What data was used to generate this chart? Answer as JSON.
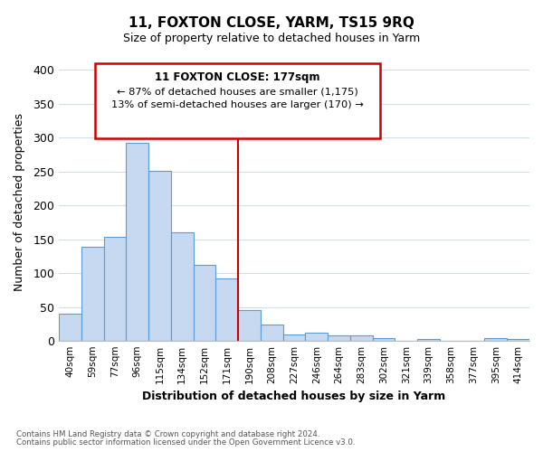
{
  "title": "11, FOXTON CLOSE, YARM, TS15 9RQ",
  "subtitle": "Size of property relative to detached houses in Yarm",
  "xlabel": "Distribution of detached houses by size in Yarm",
  "ylabel": "Number of detached properties",
  "categories": [
    "40sqm",
    "59sqm",
    "77sqm",
    "96sqm",
    "115sqm",
    "134sqm",
    "152sqm",
    "171sqm",
    "190sqm",
    "208sqm",
    "227sqm",
    "246sqm",
    "264sqm",
    "283sqm",
    "302sqm",
    "321sqm",
    "339sqm",
    "358sqm",
    "377sqm",
    "395sqm",
    "414sqm"
  ],
  "values": [
    40,
    139,
    154,
    293,
    251,
    160,
    113,
    92,
    46,
    25,
    10,
    13,
    8,
    8,
    5,
    0,
    3,
    0,
    0,
    5,
    3
  ],
  "bar_color": "#c6d9f1",
  "bar_edge_color": "#5b9bd5",
  "highlight_line_index": 7,
  "highlight_line_color": "#cc0000",
  "annotation_title": "11 FOXTON CLOSE: 177sqm",
  "annotation_line1": "← 87% of detached houses are smaller (1,175)",
  "annotation_line2": "13% of semi-detached houses are larger (170) →",
  "annotation_box_color": "#ffffff",
  "annotation_box_edge": "#cc0000",
  "ylim": [
    0,
    410
  ],
  "yticks": [
    0,
    50,
    100,
    150,
    200,
    250,
    300,
    350,
    400
  ],
  "footnote1": "Contains HM Land Registry data © Crown copyright and database right 2024.",
  "footnote2": "Contains public sector information licensed under the Open Government Licence v3.0.",
  "background_color": "#ffffff",
  "grid_color": "#d0dce8",
  "title_fontsize": 11,
  "subtitle_fontsize": 9
}
